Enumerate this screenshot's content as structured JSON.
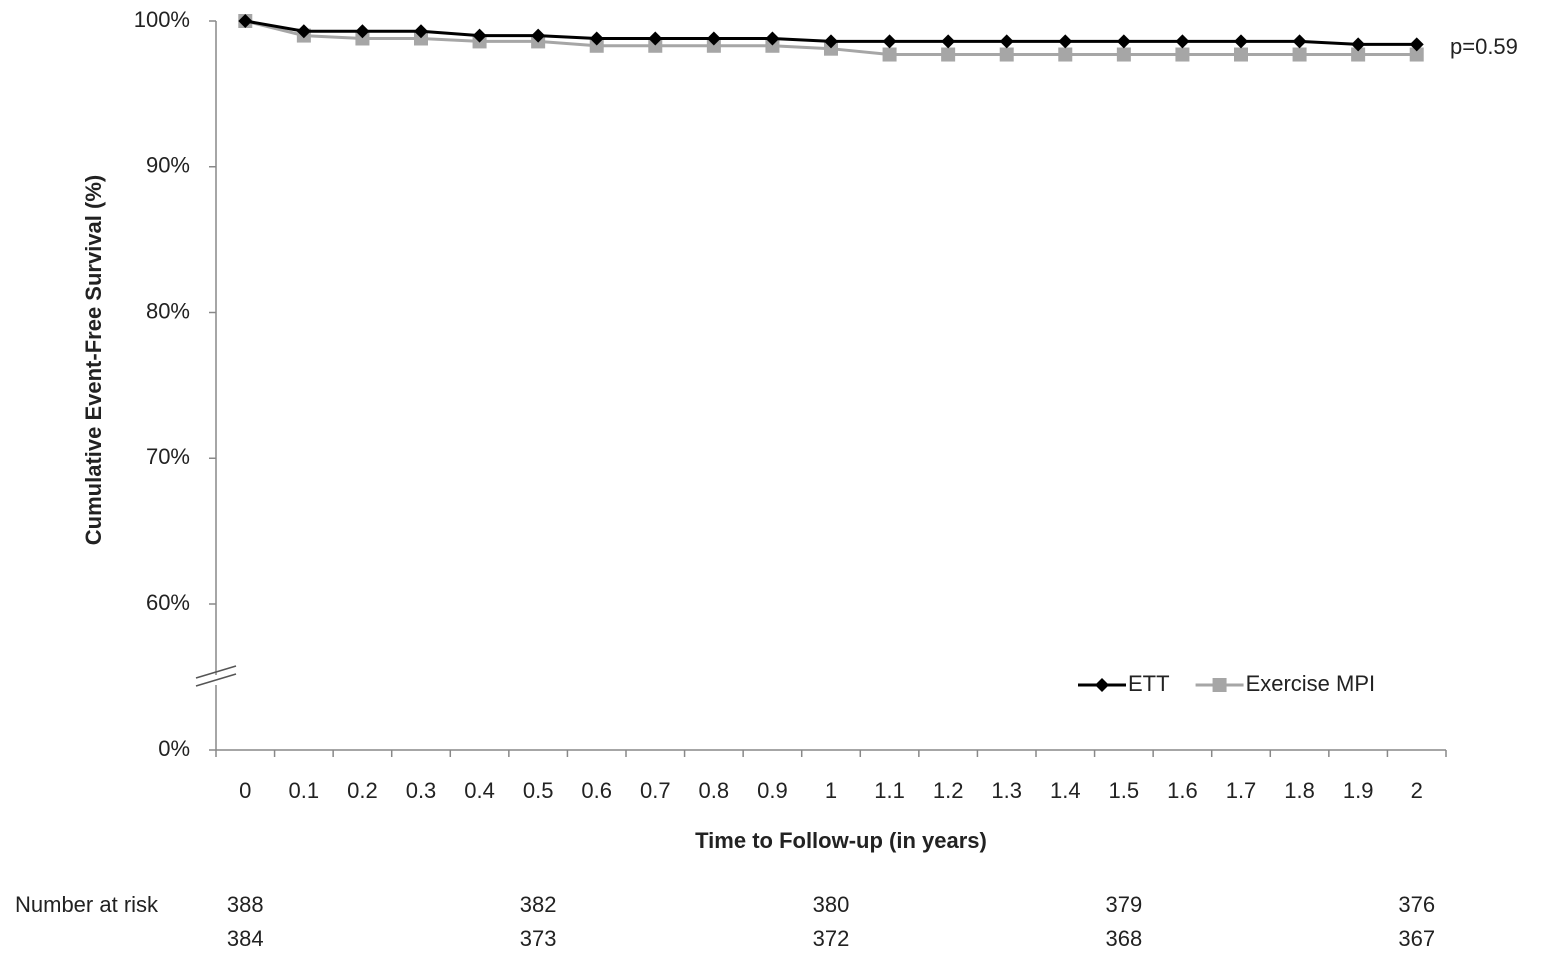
{
  "chart_data": {
    "type": "line",
    "y_label": "Cumulative Event-Free Survival (%)",
    "x_label": "Time to Follow-up (in years)",
    "annotation": "p=0.59",
    "categories": [
      "0",
      "0.1",
      "0.2",
      "0.3",
      "0.4",
      "0.5",
      "0.6",
      "0.7",
      "0.8",
      "0.9",
      "1",
      "1.1",
      "1.2",
      "1.3",
      "1.4",
      "1.5",
      "1.6",
      "1.7",
      "1.8",
      "1.9",
      "2"
    ],
    "series": [
      {
        "name": "ETT",
        "color": "#000000",
        "marker": "diamond",
        "values": [
          100,
          99.3,
          99.3,
          99.3,
          99.0,
          99.0,
          98.8,
          98.8,
          98.8,
          98.8,
          98.6,
          98.6,
          98.6,
          98.6,
          98.6,
          98.6,
          98.6,
          98.6,
          98.6,
          98.4,
          98.4
        ]
      },
      {
        "name": "Exercise MPI",
        "color": "#a6a6a6",
        "marker": "square",
        "values": [
          100,
          99.0,
          98.8,
          98.8,
          98.6,
          98.6,
          98.3,
          98.3,
          98.3,
          98.3,
          98.1,
          97.7,
          97.7,
          97.7,
          97.7,
          97.7,
          97.7,
          97.7,
          97.7,
          97.7,
          97.7
        ]
      }
    ],
    "ylim": [
      0,
      100
    ],
    "ybreak": [
      0,
      60
    ],
    "yticks": [
      {
        "value": 0,
        "label": "0%"
      },
      {
        "value": 60,
        "label": "60%"
      },
      {
        "value": 70,
        "label": "70%"
      },
      {
        "value": 80,
        "label": "80%"
      },
      {
        "value": 90,
        "label": "90%"
      },
      {
        "value": 100,
        "label": "100%"
      }
    ],
    "legend": "lower right",
    "risk_table": {
      "label": "Number at risk",
      "rows": [
        [
          388,
          null,
          null,
          null,
          null,
          382,
          null,
          null,
          null,
          null,
          380,
          null,
          null,
          null,
          null,
          379,
          null,
          null,
          null,
          null,
          376
        ],
        [
          384,
          null,
          null,
          null,
          null,
          373,
          null,
          null,
          null,
          null,
          372,
          null,
          null,
          null,
          null,
          368,
          null,
          null,
          null,
          null,
          367
        ]
      ]
    }
  }
}
